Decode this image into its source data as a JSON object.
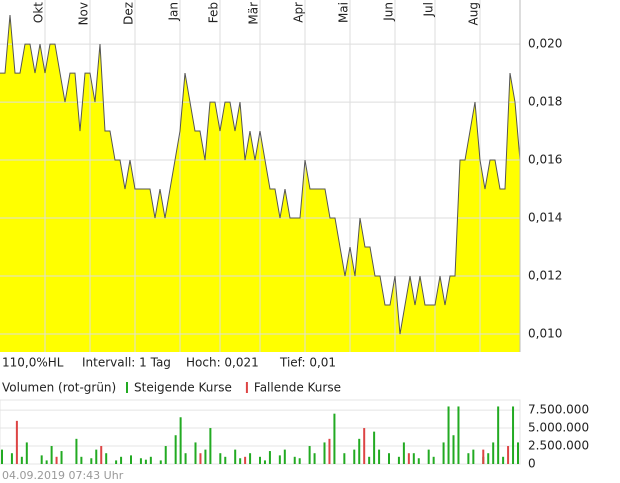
{
  "chart_data": [
    {
      "type": "area",
      "color": "#ffff00",
      "line_color": "#555555",
      "xlim": [
        0,
        104
      ],
      "ylim": [
        0.00938,
        0.02152
      ],
      "xticks": [
        {
          "value": 9,
          "label": "Okt"
        },
        {
          "value": 18,
          "label": "Nov"
        },
        {
          "value": 27,
          "label": "Dez"
        },
        {
          "value": 36,
          "label": "Jan"
        },
        {
          "value": 44,
          "label": "Feb"
        },
        {
          "value": 52,
          "label": "Mär"
        },
        {
          "value": 61,
          "label": "Apr"
        },
        {
          "value": 70,
          "label": "Mai"
        },
        {
          "value": 79,
          "label": "Jun"
        },
        {
          "value": 87,
          "label": "Jul"
        },
        {
          "value": 96,
          "label": "Aug"
        }
      ],
      "yticks": [
        {
          "value": 0.01,
          "label": "0,010"
        },
        {
          "value": 0.012,
          "label": "0,012"
        },
        {
          "value": 0.014,
          "label": "0,014"
        },
        {
          "value": 0.016,
          "label": "0,016"
        },
        {
          "value": 0.018,
          "label": "0,018"
        },
        {
          "value": 0.02,
          "label": "0,020"
        }
      ],
      "grid": true,
      "values": [
        0.019,
        0.019,
        0.021,
        0.019,
        0.019,
        0.02,
        0.02,
        0.019,
        0.02,
        0.019,
        0.02,
        0.02,
        0.019,
        0.018,
        0.019,
        0.019,
        0.017,
        0.019,
        0.019,
        0.018,
        0.02,
        0.017,
        0.017,
        0.016,
        0.016,
        0.015,
        0.016,
        0.015,
        0.015,
        0.015,
        0.015,
        0.014,
        0.015,
        0.014,
        0.015,
        0.016,
        0.017,
        0.019,
        0.018,
        0.017,
        0.017,
        0.016,
        0.018,
        0.018,
        0.017,
        0.018,
        0.018,
        0.017,
        0.018,
        0.016,
        0.017,
        0.016,
        0.017,
        0.016,
        0.015,
        0.015,
        0.014,
        0.015,
        0.014,
        0.014,
        0.014,
        0.016,
        0.015,
        0.015,
        0.015,
        0.015,
        0.014,
        0.014,
        0.013,
        0.012,
        0.013,
        0.012,
        0.014,
        0.013,
        0.013,
        0.012,
        0.012,
        0.011,
        0.011,
        0.012,
        0.01,
        0.011,
        0.012,
        0.011,
        0.012,
        0.011,
        0.011,
        0.011,
        0.012,
        0.011,
        0.012,
        0.012,
        0.016,
        0.016,
        0.017,
        0.018,
        0.016,
        0.015,
        0.016,
        0.016,
        0.015,
        0.015,
        0.019,
        0.018,
        0.016
      ]
    },
    {
      "type": "bar",
      "title": "Volumen (rot-grün)",
      "xlim": [
        0,
        104
      ],
      "ylim": [
        0,
        8900000
      ],
      "yticks": [
        0,
        {
          "value": 2500000,
          "label": "2.500.000"
        },
        {
          "value": 5000000,
          "label": "5.000.000"
        },
        {
          "value": 7500000,
          "label": "7.500.000"
        }
      ],
      "grid": true,
      "series": [
        {
          "name": "Steigende Kurse",
          "color": "#22aa22",
          "values": [
            2000000,
            null,
            1500000,
            null,
            1000000,
            3000000,
            null,
            null,
            1200000,
            500000,
            2500000,
            null,
            1800000,
            null,
            null,
            3500000,
            1000000,
            null,
            800000,
            2000000,
            null,
            1500000,
            null,
            500000,
            1000000,
            null,
            1200000,
            null,
            800000,
            600000,
            1000000,
            null,
            500000,
            2500000,
            null,
            4000000,
            6500000,
            1500000,
            null,
            3000000,
            null,
            2000000,
            5000000,
            null,
            1500000,
            1000000,
            null,
            2000000,
            800000,
            null,
            1500000,
            null,
            1000000,
            500000,
            1800000,
            null,
            1200000,
            2000000,
            null,
            1000000,
            800000,
            null,
            2500000,
            1500000,
            null,
            3000000,
            null,
            7000000,
            null,
            1500000,
            null,
            2000000,
            3500000,
            null,
            1000000,
            4500000,
            2000000,
            null,
            1500000,
            null,
            1000000,
            3000000,
            null,
            1500000,
            800000,
            null,
            2000000,
            1000000,
            null,
            3000000,
            8000000,
            4000000,
            8000000,
            null,
            1500000,
            2000000,
            null,
            1000000,
            1500000,
            3000000,
            8000000,
            1000000,
            null,
            8000000,
            3000000
          ]
        },
        {
          "name": "Fallende Kurse",
          "color": "#dd4444",
          "values": [
            null,
            null,
            null,
            6000000,
            null,
            null,
            null,
            null,
            null,
            null,
            null,
            1000000,
            null,
            null,
            null,
            null,
            null,
            null,
            null,
            null,
            2500000,
            null,
            null,
            null,
            null,
            null,
            null,
            null,
            null,
            null,
            null,
            null,
            null,
            null,
            null,
            null,
            null,
            null,
            null,
            null,
            1500000,
            null,
            null,
            null,
            null,
            null,
            null,
            null,
            null,
            1000000,
            null,
            null,
            null,
            null,
            null,
            null,
            null,
            null,
            null,
            null,
            null,
            null,
            null,
            null,
            null,
            null,
            3500000,
            null,
            null,
            null,
            null,
            null,
            null,
            5000000,
            null,
            null,
            null,
            null,
            null,
            null,
            null,
            null,
            1500000,
            null,
            null,
            null,
            null,
            null,
            null,
            null,
            null,
            null,
            null,
            null,
            null,
            null,
            null,
            2000000,
            null,
            null,
            null,
            null,
            2500000,
            null,
            null
          ]
        }
      ]
    }
  ],
  "info": {
    "range": "110,0%HL",
    "interval": "Intervall: 1 Tag",
    "high": "Hoch:  0,021",
    "low": "Tief:  0,01"
  },
  "footer": "04.09.2019 07:43 Uhr"
}
